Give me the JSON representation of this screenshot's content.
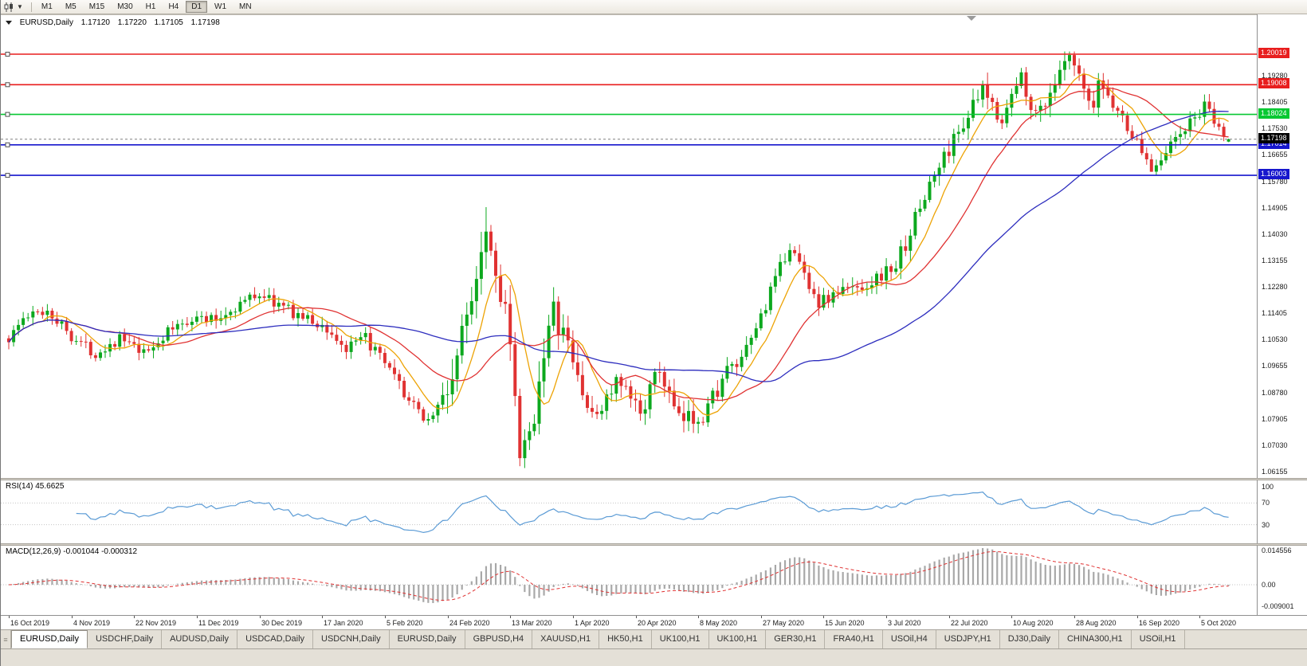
{
  "toolbar": {
    "chart_type_icon": "candlestick-chart-icon",
    "dropdown_icon": "chevron-down-icon",
    "timeframes": [
      "M1",
      "M5",
      "M15",
      "M30",
      "H1",
      "H4",
      "D1",
      "W1",
      "MN"
    ],
    "active_timeframe": "D1"
  },
  "chart_header": {
    "symbol": "EURUSD,Daily",
    "open": "1.17120",
    "high": "1.17220",
    "low": "1.17105",
    "close": "1.17198"
  },
  "price_axis_labels": [
    "1.19280",
    "1.18405",
    "1.17530",
    "1.16655",
    "1.15780",
    "1.14905",
    "1.14030",
    "1.13155",
    "1.12280",
    "1.11405",
    "1.10530",
    "1.09655",
    "1.08780",
    "1.07905",
    "1.07030",
    "1.06155"
  ],
  "chart_data": {
    "type": "candlestick",
    "symbol": "EURUSD",
    "timeframe": "Daily",
    "bars": 254,
    "price_range_visible": [
      1.0594,
      1.2113
    ],
    "up_color": "#0ca81e",
    "down_color": "#e03232",
    "anchors_close": [
      [
        0,
        1.106
      ],
      [
        3,
        1.1125
      ],
      [
        8,
        1.1155
      ],
      [
        13,
        1.107
      ],
      [
        18,
        1.101
      ],
      [
        23,
        1.106
      ],
      [
        28,
        1.1005
      ],
      [
        33,
        1.108
      ],
      [
        38,
        1.113
      ],
      [
        43,
        1.112
      ],
      [
        48,
        1.1175
      ],
      [
        52,
        1.121
      ],
      [
        56,
        1.117
      ],
      [
        61,
        1.113
      ],
      [
        66,
        1.109
      ],
      [
        70,
        1.102
      ],
      [
        74,
        1.106
      ],
      [
        79,
        1.095
      ],
      [
        84,
        1.083
      ],
      [
        87,
        1.079
      ],
      [
        91,
        1.088
      ],
      [
        95,
        1.113
      ],
      [
        99,
        1.145
      ],
      [
        101,
        1.127
      ],
      [
        103,
        1.118
      ],
      [
        106,
        1.066
      ],
      [
        108,
        1.072
      ],
      [
        111,
        1.103
      ],
      [
        113,
        1.114
      ],
      [
        116,
        1.103
      ],
      [
        121,
        1.079
      ],
      [
        126,
        1.091
      ],
      [
        131,
        1.082
      ],
      [
        135,
        1.0955
      ],
      [
        139,
        1.0783
      ],
      [
        144,
        1.081
      ],
      [
        149,
        1.095
      ],
      [
        152,
        1.098
      ],
      [
        156,
        1.1134
      ],
      [
        162,
        1.137
      ],
      [
        168,
        1.1177
      ],
      [
        173,
        1.1219
      ],
      [
        178,
        1.124
      ],
      [
        184,
        1.13
      ],
      [
        191,
        1.157
      ],
      [
        198,
        1.1778
      ],
      [
        202,
        1.1876
      ],
      [
        206,
        1.179
      ],
      [
        210,
        1.193
      ],
      [
        213,
        1.1796
      ],
      [
        220,
        1.199
      ],
      [
        225,
        1.18
      ],
      [
        226,
        1.1915
      ],
      [
        230,
        1.1815
      ],
      [
        237,
        1.1625
      ],
      [
        239,
        1.1665
      ],
      [
        242,
        1.172
      ],
      [
        248,
        1.1826
      ],
      [
        251,
        1.175
      ],
      [
        253,
        1.172
      ]
    ],
    "spikes": [
      {
        "i": 99,
        "high": 1.1495
      },
      {
        "i": 106,
        "low": 1.0636
      },
      {
        "i": 220,
        "high": 1.2011
      },
      {
        "i": 237,
        "low": 1.1612
      }
    ],
    "volatility_zones": [
      {
        "from": 0,
        "to": 90,
        "v": 1.0
      },
      {
        "from": 90,
        "to": 120,
        "v": 2.4
      },
      {
        "from": 120,
        "to": 150,
        "v": 1.5
      },
      {
        "from": 150,
        "to": 185,
        "v": 1.1
      },
      {
        "from": 185,
        "to": 230,
        "v": 1.4
      },
      {
        "from": 230,
        "to": 254,
        "v": 1.0
      }
    ],
    "moving_averages": [
      {
        "period": 8,
        "color": "#eda305"
      },
      {
        "period": 21,
        "color": "#e03232"
      },
      {
        "period": 55,
        "color": "#2d2dbe"
      }
    ],
    "horizontal_lines": [
      {
        "price": 1.20019,
        "label": "1.20019",
        "color": "#e81e1e"
      },
      {
        "price": 1.19008,
        "label": "1.19008",
        "color": "#e81e1e"
      },
      {
        "price": 1.18024,
        "label": "1.18024",
        "color": "#08c832"
      },
      {
        "price": 1.17014,
        "label": "1.17014",
        "color": "#1717cd"
      },
      {
        "price": 1.16003,
        "label": "1.16003",
        "color": "#1717cd"
      }
    ],
    "current_price": {
      "value": 1.17198,
      "label": "1.17198",
      "box_color": "#000000"
    },
    "x_axis_labels": [
      "16 Oct 2019",
      "4 Nov 2019",
      "22 Nov 2019",
      "11 Dec 2019",
      "30 Dec 2019",
      "17 Jan 2020",
      "5 Feb 2020",
      "24 Feb 2020",
      "13 Mar 2020",
      "1 Apr 2020",
      "20 Apr 2020",
      "8 May 2020",
      "27 May 2020",
      "15 Jun 2020",
      "3 Jul 2020",
      "22 Jul 2020",
      "10 Aug 2020",
      "28 Aug 2020",
      "16 Sep 2020",
      "5 Oct 2020"
    ],
    "indicators": [
      {
        "name": "RSI",
        "label": "RSI(14) 45.6625",
        "period": 14,
        "value": 45.6625,
        "levels": [
          100,
          70,
          30
        ],
        "line_color": "#5b9bd5"
      },
      {
        "name": "MACD",
        "label": "MACD(12,26,9) -0.001044 -0.000312",
        "fast": 12,
        "slow": 26,
        "signal": 9,
        "macd_value": -0.001044,
        "signal_value": -0.000312,
        "axis_labels": [
          "0.014556",
          "0.00",
          "-0.009001"
        ],
        "histogram_color": "#a8a8a8",
        "signal_color": "#e03232"
      }
    ]
  },
  "tabs": {
    "items": [
      "EURUSD,Daily",
      "USDCHF,Daily",
      "AUDUSD,Daily",
      "USDCAD,Daily",
      "USDCNH,Daily",
      "EURUSD,Daily",
      "GBPUSD,H4",
      "XAUUSD,H1",
      "HK50,H1",
      "UK100,H1",
      "UK100,H1",
      "GER30,H1",
      "FRA40,H1",
      "USOil,H4",
      "USDJPY,H1",
      "DJ30,Daily",
      "CHINA300,H1",
      "USOil,H1"
    ],
    "active_index": 0
  }
}
